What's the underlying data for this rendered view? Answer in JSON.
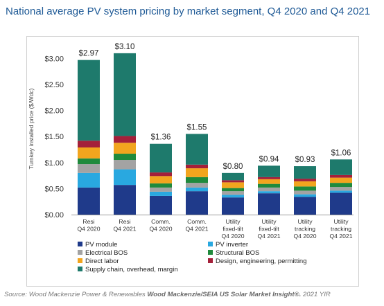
{
  "title": "National average PV system pricing by market segment, Q4 2020 and Q4 2021",
  "source": {
    "prefix": "Source: Wood Mackenzie Power & Renewables ",
    "bold": "Wood Mackenzie/SEIA US Solar Market Insight®.",
    "suffix": " 2021 YIR"
  },
  "chart_data": {
    "type": "bar",
    "stacked": true,
    "title": "National average PV system pricing by market segment, Q4 2020 and Q4 2021",
    "ylabel": "Turnkey installed price ($/Wdc)",
    "ylim": [
      0,
      3.1
    ],
    "y_ticks": [
      "$0.00",
      "$0.50",
      "$1.00",
      "$1.50",
      "$2.00",
      "$2.50",
      "$3.00"
    ],
    "y_tick_values": [
      0,
      0.5,
      1.0,
      1.5,
      2.0,
      2.5,
      3.0
    ],
    "grid": false,
    "legend_position": "bottom",
    "categories": [
      [
        "Resi",
        "Q4 2020"
      ],
      [
        "Resi",
        "Q4 2021"
      ],
      [
        "Comm.",
        "Q4 2020"
      ],
      [
        "Comm.",
        "Q4 2021"
      ],
      [
        "Utility",
        "fixed-tilt",
        "Q4 2020"
      ],
      [
        "Utility",
        "fixed-tilt",
        "Q4 2021"
      ],
      [
        "Utility",
        "tracking",
        "Q4 2020"
      ],
      [
        "Utility",
        "tracking",
        "Q4 2021"
      ]
    ],
    "totals": [
      2.97,
      3.1,
      1.36,
      1.55,
      0.8,
      0.94,
      0.93,
      1.06
    ],
    "total_labels": [
      "$2.97",
      "$3.10",
      "$1.36",
      "$1.55",
      "$0.80",
      "$0.94",
      "$0.93",
      "$1.06"
    ],
    "series": [
      {
        "name": "PV module",
        "color": "#1f3a8a",
        "values": [
          0.52,
          0.57,
          0.36,
          0.45,
          0.33,
          0.41,
          0.34,
          0.42
        ]
      },
      {
        "name": "PV inverter",
        "color": "#29a8e0",
        "values": [
          0.28,
          0.3,
          0.08,
          0.07,
          0.05,
          0.04,
          0.05,
          0.04
        ]
      },
      {
        "name": "Electrical BOS",
        "color": "#a3a3a3",
        "values": [
          0.17,
          0.18,
          0.08,
          0.09,
          0.07,
          0.07,
          0.07,
          0.07
        ]
      },
      {
        "name": "Structural BOS",
        "color": "#1f8a3c",
        "values": [
          0.11,
          0.12,
          0.08,
          0.11,
          0.06,
          0.07,
          0.08,
          0.08
        ]
      },
      {
        "name": "Direct labor",
        "color": "#f2a51e",
        "values": [
          0.21,
          0.21,
          0.14,
          0.17,
          0.11,
          0.09,
          0.1,
          0.1
        ]
      },
      {
        "name": "Design, engineering, permitting",
        "color": "#a4203a",
        "values": [
          0.13,
          0.13,
          0.07,
          0.07,
          0.04,
          0.04,
          0.05,
          0.05
        ]
      },
      {
        "name": "Supply chain, overhead, margin",
        "color": "#1e7a6c",
        "values": [
          1.55,
          1.59,
          0.55,
          0.59,
          0.14,
          0.22,
          0.24,
          0.3
        ]
      }
    ]
  }
}
